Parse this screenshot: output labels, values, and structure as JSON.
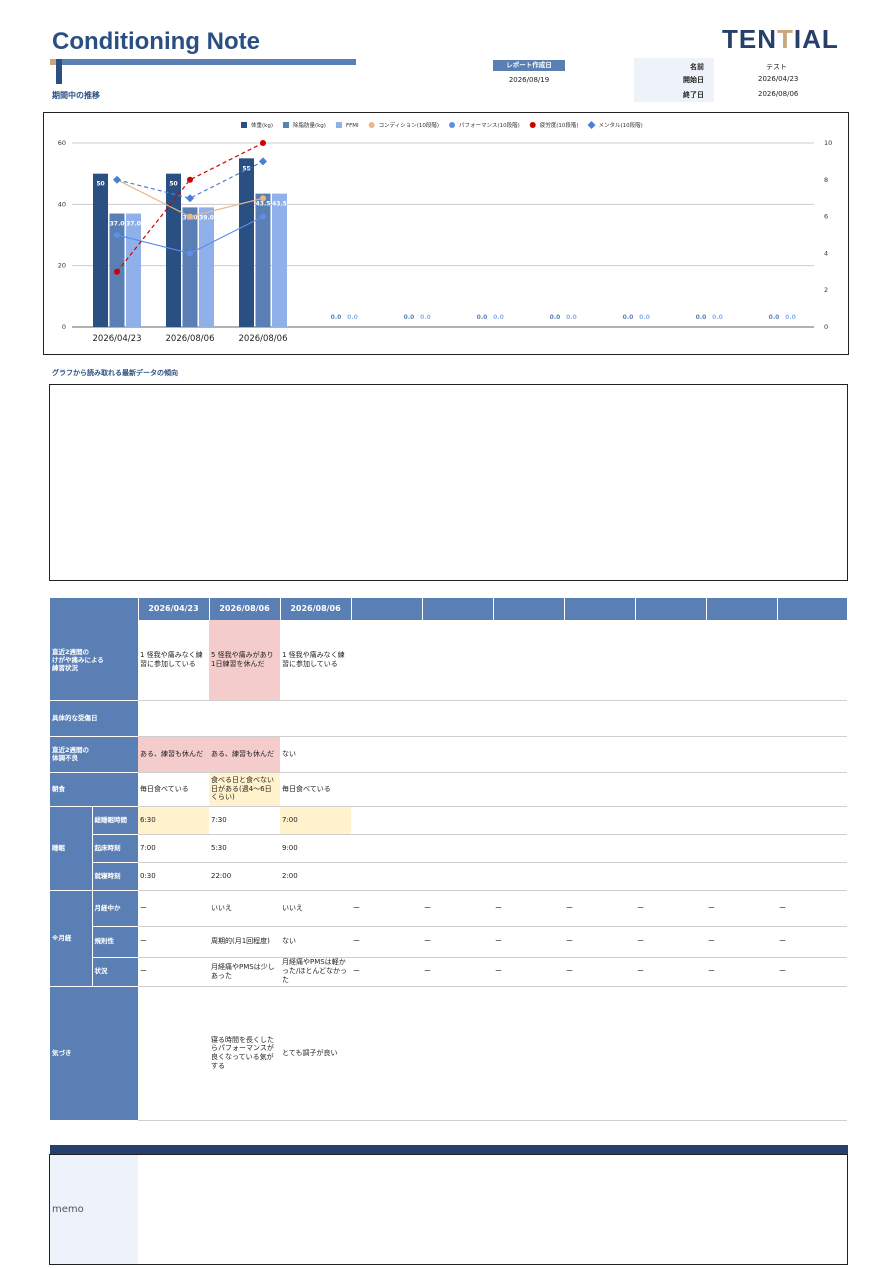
{
  "header": {
    "title": "Conditioning Note",
    "subtitle": "期間中の推移",
    "logo_prefix": "TEN",
    "logo_mid": "T",
    "logo_suffix": "IAL",
    "report_date_label": "レポート作成日",
    "report_date": "2026/08/19",
    "name_label": "名前",
    "name_value": "テスト",
    "start_label": "開始日",
    "start_value": "2026/04/23",
    "end_label": "終了日",
    "end_value": "2026/08/06"
  },
  "chart_data": {
    "type": "bar",
    "categories": [
      "2026/04/23",
      "2026/08/06",
      "2026/08/06",
      "",
      "",
      "",
      "",
      "",
      "",
      ""
    ],
    "legend": [
      "体重(kg)",
      "除脂肪量(kg)",
      "FFMI",
      "コンディション(10段階)",
      "パフォーマンス(10段階)",
      "疲労度(10段階)",
      "メンタル(10段階)"
    ],
    "y_left_ticks": [
      "0",
      "20",
      "40",
      "60"
    ],
    "y_right_ticks": [
      "0",
      "2",
      "4",
      "6",
      "8",
      "10"
    ],
    "ylim_left": [
      0,
      60
    ],
    "ylim_right": [
      0,
      10
    ],
    "bar_series": [
      {
        "name": "体重(kg)",
        "values": [
          50,
          50,
          55,
          null,
          null,
          null,
          null,
          null,
          null,
          null
        ],
        "labels": [
          "50",
          "50",
          "55",
          "",
          "",
          "",
          "",
          "",
          "",
          ""
        ],
        "color": "#2a4f82"
      },
      {
        "name": "除脂肪量(kg)",
        "values": [
          37.0,
          39.0,
          43.5,
          0,
          0,
          0,
          0,
          0,
          0,
          0
        ],
        "labels": [
          "37.0",
          "39.0",
          "43.5",
          "0.0",
          "0.0",
          "0.0",
          "0.0",
          "0.0",
          "0.0",
          "0.0"
        ],
        "color": "#5a7fb5"
      },
      {
        "name": "FFMI",
        "values": [
          37.0,
          39.0,
          43.5,
          0,
          0,
          0,
          0,
          0,
          0,
          0
        ],
        "labels": [
          "37.0",
          "39.0",
          "43.5",
          "0.0",
          "0.0",
          "0.0",
          "0.0",
          "0.0",
          "0.0",
          "0.0"
        ],
        "color": "#8fb0e8"
      }
    ],
    "line_series": [
      {
        "name": "コンディション(10段階)",
        "values": [
          8,
          6,
          7
        ],
        "color": "#e8b88a",
        "dash": false,
        "marker": "circle"
      },
      {
        "name": "パフォーマンス(10段階)",
        "values": [
          5,
          4,
          6
        ],
        "color": "#5f8ee6",
        "dash": false,
        "marker": "circle"
      },
      {
        "name": "疲労度(10段階)",
        "values": [
          3,
          8,
          10
        ],
        "color": "#cc0000",
        "dash": true,
        "marker": "circle"
      },
      {
        "name": "メンタル(10段階)",
        "values": [
          8,
          7,
          9
        ],
        "color": "#4a7fd4",
        "dash": true,
        "marker": "diamond"
      }
    ]
  },
  "trend": {
    "label": "グラフから読み取れる最新データの傾向",
    "content": ""
  },
  "table": {
    "dates": [
      "2026/04/23",
      "2026/08/06",
      "2026/08/06",
      "",
      "",
      "",
      "",
      "",
      "",
      ""
    ],
    "injury_label": "直近2週間の\nけがや痛みによる\n練習状況",
    "injury": [
      "1 怪我や痛みなく練習に参加している",
      "5 怪我や痛みがあり1日練習を休んだ",
      "1 怪我や痛みなく練習に参加している"
    ],
    "visit_label": "具体的な受傷日",
    "illness_label": "直近2週間の\n体調不良",
    "illness": [
      "ある、練習も休んだ",
      "ある、練習も休んだ",
      "ない"
    ],
    "breakfast_label": "朝食",
    "breakfast": [
      "毎日食べている",
      "食べる日と食べない日がある(週4〜6日くらい)",
      "毎日食べている"
    ],
    "sleep_label": "睡眠",
    "sleep_total_label": "総睡眠時間",
    "sleep_total": [
      "6:30",
      "7:30",
      "7:00"
    ],
    "wake_label": "起床時刻",
    "wake": [
      "7:00",
      "5:30",
      "9:00"
    ],
    "bed_label": "就寝時刻",
    "bed": [
      "0:30",
      "22:00",
      "2:00"
    ],
    "menses_label": "※月経",
    "menses_now_label": "月経中か",
    "menses_now": [
      "ー",
      "いいえ",
      "いいえ",
      "ー",
      "ー",
      "ー",
      "ー",
      "ー",
      "ー",
      "ー"
    ],
    "regularity_label": "規則性",
    "regularity": [
      "ー",
      "周期的(月1回程度)",
      "ない",
      "ー",
      "ー",
      "ー",
      "ー",
      "ー",
      "ー",
      "ー"
    ],
    "condition_label": "状況",
    "condition": [
      "ー",
      "月経痛やPMSは少しあった",
      "月経痛やPMSは軽かった/ほとんどなかった",
      "ー",
      "ー",
      "ー",
      "ー",
      "ー",
      "ー",
      "ー"
    ],
    "notes_label": "気づき",
    "notes": [
      "",
      "寝る時間を長くしたらパフォーマンスが良くなっている気がする",
      "とても調子が良い"
    ]
  },
  "memo": {
    "label": "memo",
    "content": ""
  }
}
